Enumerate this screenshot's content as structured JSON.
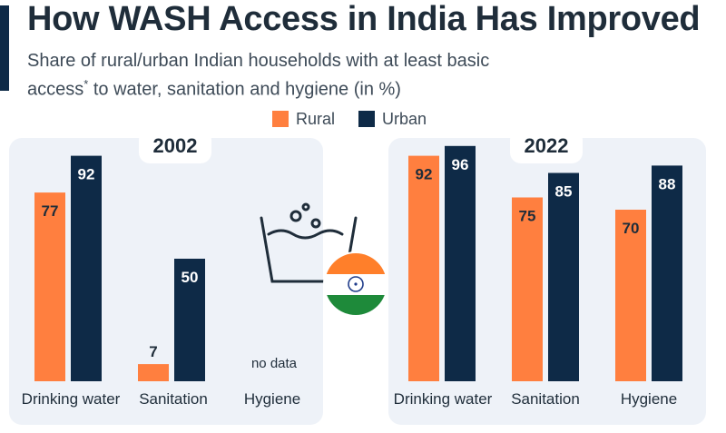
{
  "title": "How WASH Access in India Has Improved",
  "subtitle_line1": "Share of rural/urban Indian households with at least basic",
  "subtitle_line2_pre": "access",
  "subtitle_sup": "*",
  "subtitle_line2_post": " to water, sanitation and hygiene (in %)",
  "legend": {
    "rural": "Rural",
    "urban": "Urban"
  },
  "colors": {
    "rural": "#ff7f3f",
    "urban": "#0e2a47",
    "panel": "#eef2f8"
  },
  "no_data_text": "no data",
  "chart_data": [
    {
      "type": "bar",
      "title": "2002",
      "categories": [
        "Drinking water",
        "Sanitation",
        "Hygiene"
      ],
      "series": [
        {
          "name": "Rural",
          "values": [
            77,
            7,
            null
          ]
        },
        {
          "name": "Urban",
          "values": [
            92,
            50,
            null
          ]
        }
      ],
      "ylim": [
        0,
        100
      ],
      "legend_position": "top"
    },
    {
      "type": "bar",
      "title": "2022",
      "categories": [
        "Drinking water",
        "Sanitation",
        "Hygiene"
      ],
      "series": [
        {
          "name": "Rural",
          "values": [
            92,
            75,
            70
          ]
        },
        {
          "name": "Urban",
          "values": [
            96,
            85,
            88
          ]
        }
      ],
      "ylim": [
        0,
        100
      ],
      "legend_position": "top"
    }
  ]
}
